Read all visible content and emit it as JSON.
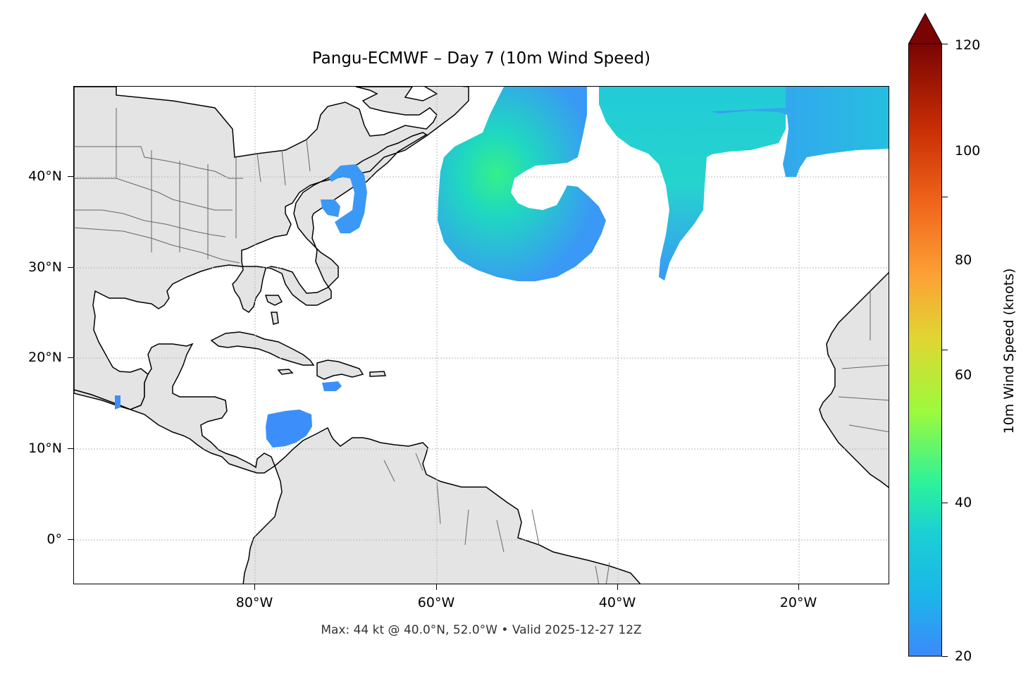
{
  "title": "Pangu-ECMWF – Day 7 (10m Wind Speed)",
  "footer": "Max: 44 kt @ 40.0°N, 52.0°W • Valid 2025-12-27 12Z",
  "map": {
    "lon_range": [
      -100,
      -10
    ],
    "lat_range": [
      -5,
      50
    ],
    "lat_gridlines": [
      {
        "value": 40,
        "label": "40°N"
      },
      {
        "value": 30,
        "label": "30°N"
      },
      {
        "value": 20,
        "label": "20°N"
      },
      {
        "value": 10,
        "label": "10°N"
      },
      {
        "value": 0,
        "label": "0°"
      }
    ],
    "lon_gridlines": [
      {
        "value": -80,
        "label": "80°W"
      },
      {
        "value": -60,
        "label": "60°W"
      },
      {
        "value": -40,
        "label": "40°W"
      },
      {
        "value": -20,
        "label": "20°W"
      }
    ],
    "land_color": "#e4e4e4",
    "ocean_color": "#ffffff",
    "wind_regions": [
      {
        "name": "mid-atlantic-gyre",
        "peak_kt": 44
      },
      {
        "name": "eastern-atlantic-band",
        "peak_kt": 35
      },
      {
        "name": "northeast-atlantic-jet",
        "peak_kt": 30
      },
      {
        "name": "off-new-england-ring",
        "peak_kt": 25
      },
      {
        "name": "caribbean-patch",
        "peak_kt": 24
      }
    ]
  },
  "colorbar": {
    "label": "10m Wind Speed (knots)",
    "min": 20,
    "max": 120,
    "ticks": [
      "20",
      "40",
      "60",
      "80",
      "100",
      "120"
    ],
    "tick_values": [
      20,
      40,
      60,
      80,
      100,
      120
    ],
    "colormap": "turbo",
    "extend": "max",
    "stops": [
      "#3c89fd",
      "#1bcfd4",
      "#2af29c",
      "#9dfa3c",
      "#e0d533",
      "#fca235",
      "#f0651b",
      "#c92e05",
      "#7a0403"
    ]
  }
}
